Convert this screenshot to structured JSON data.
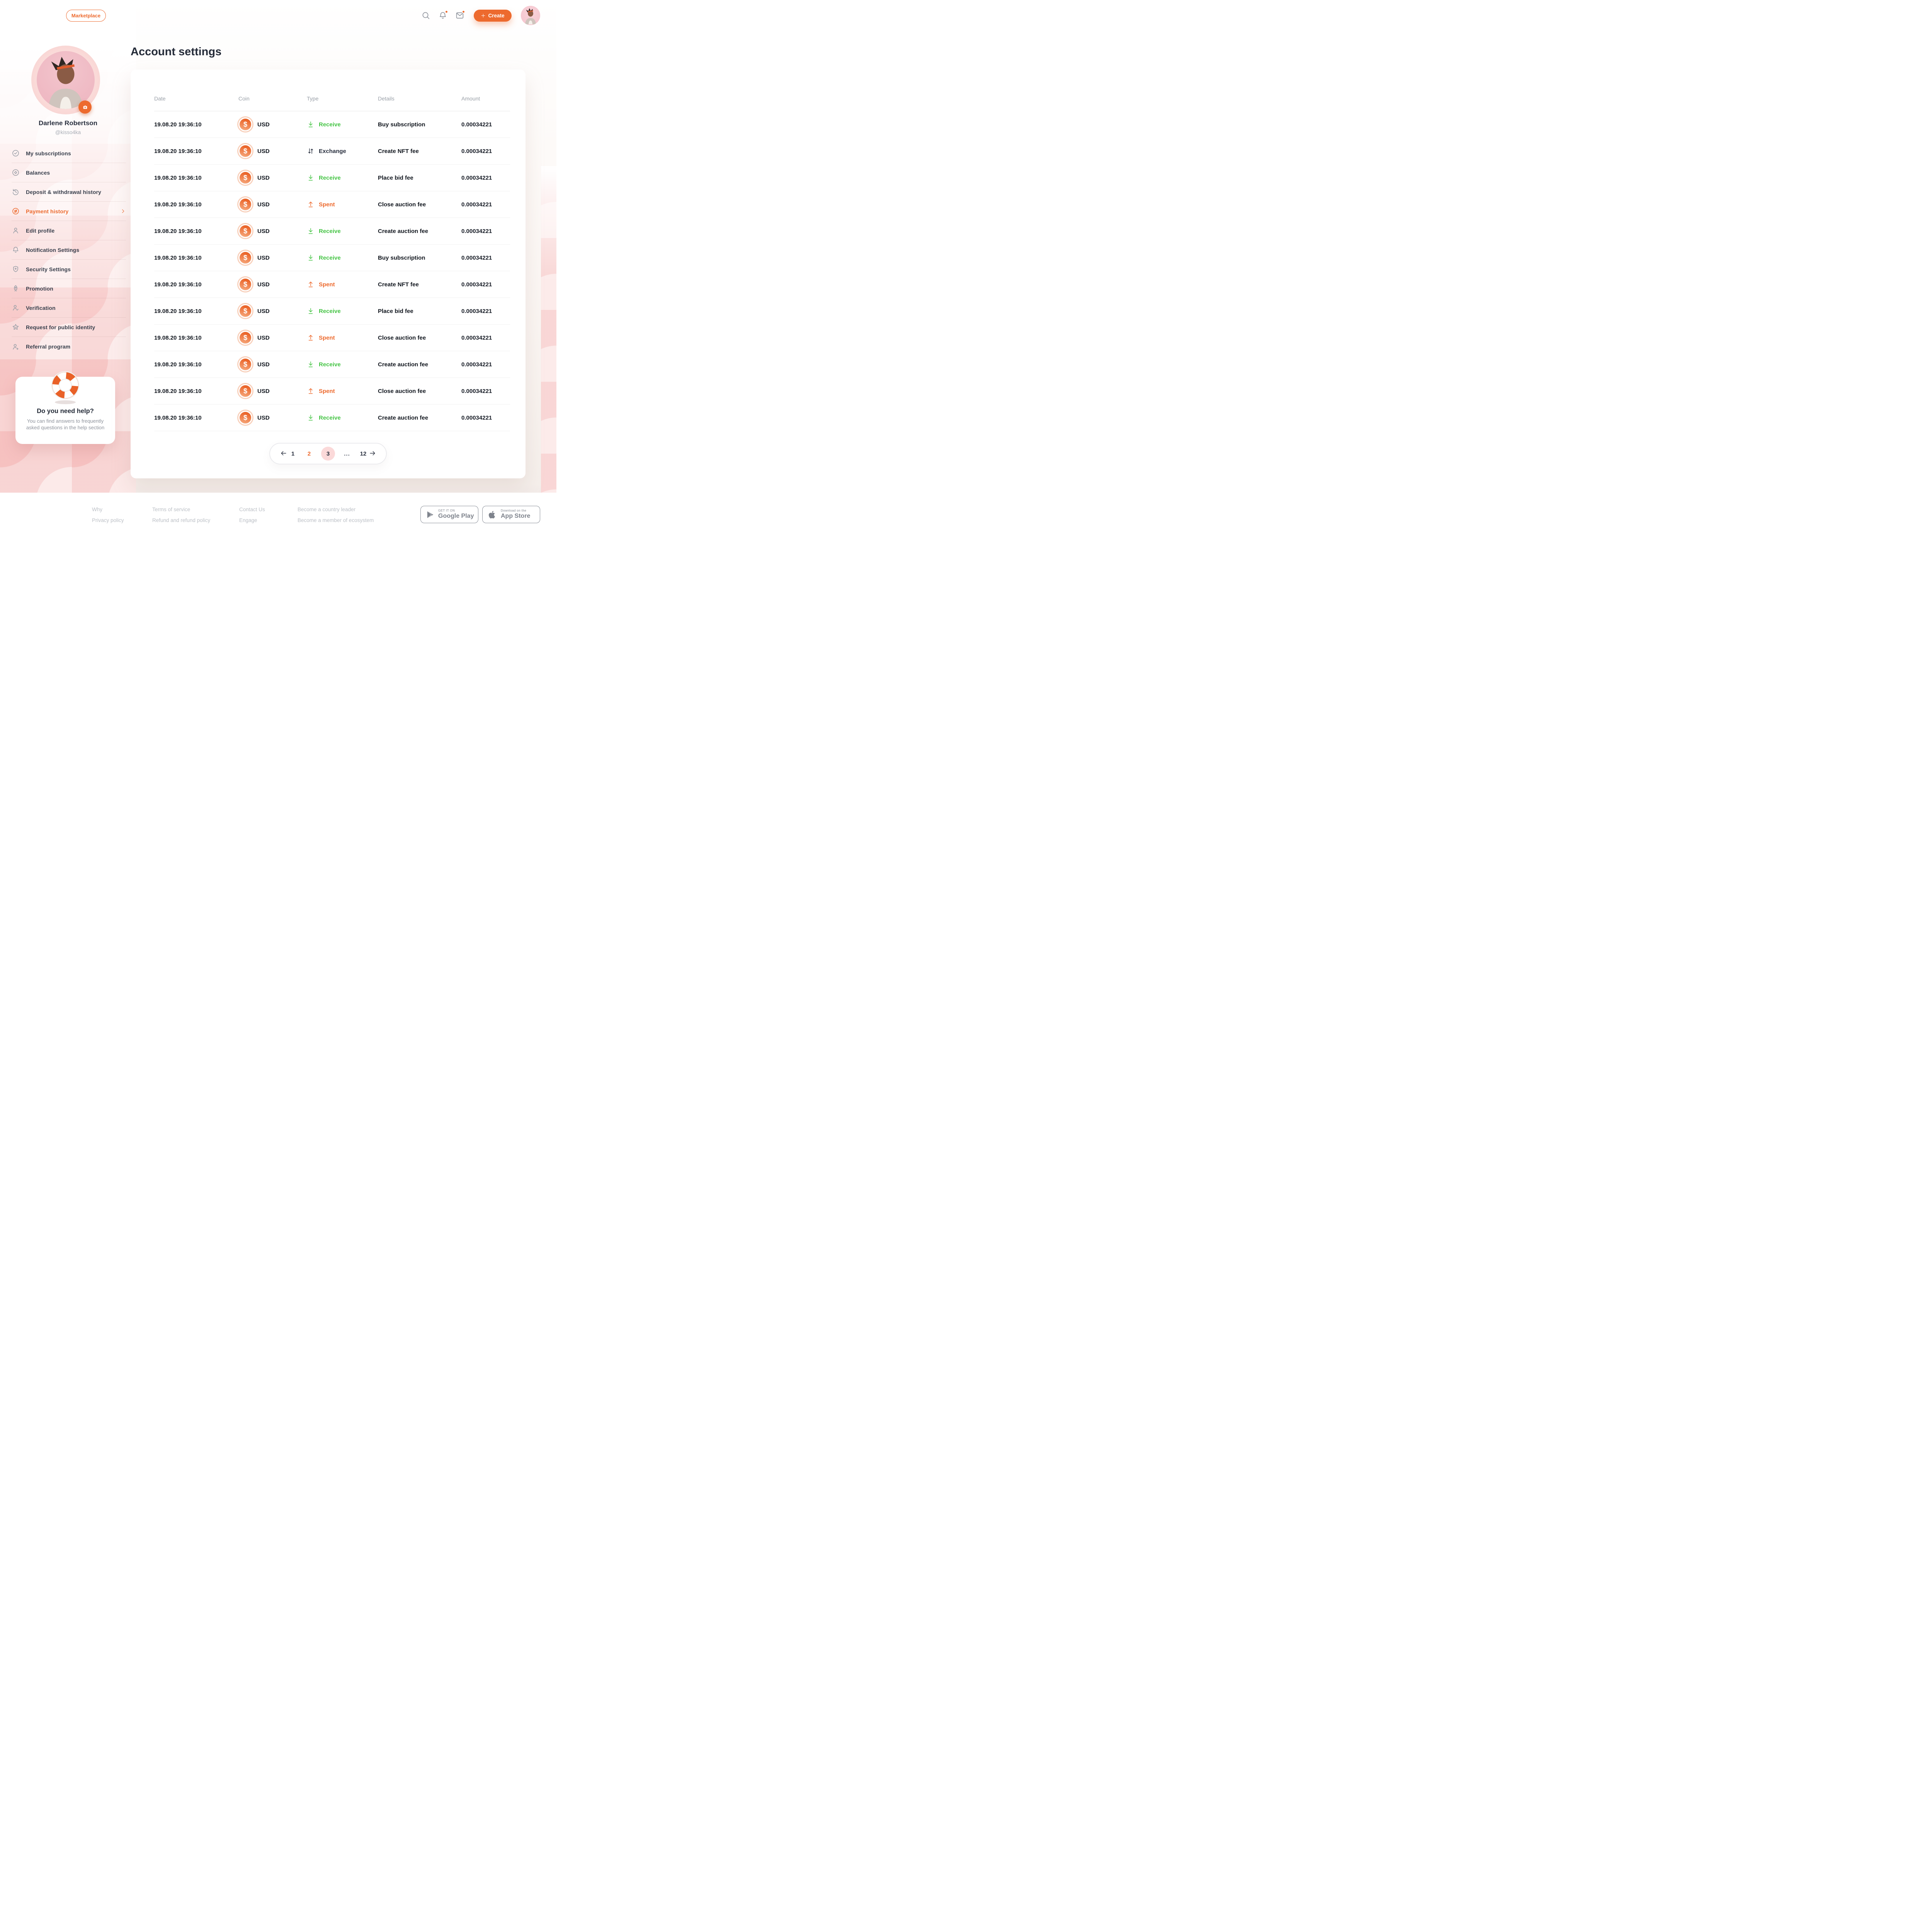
{
  "header": {
    "marketplace_label": "Marketplace",
    "create_label": "Create",
    "search_icon": "search-icon",
    "notifications_icon": "bell-icon",
    "notifications_has_unread": true,
    "messages_icon": "mail-icon",
    "messages_has_unread": true
  },
  "profile": {
    "name": "Darlene Robertson",
    "handle": "@kisso4ka",
    "camera_icon": "camera-icon"
  },
  "sidebar": {
    "items": [
      {
        "icon": "check-circle-icon",
        "label": "My subscriptions"
      },
      {
        "icon": "balances-icon",
        "label": "Balances"
      },
      {
        "icon": "history-icon",
        "label": "Deposit & withdrawal history"
      },
      {
        "icon": "exchange-circle-icon",
        "label": "Payment history",
        "active": true
      },
      {
        "icon": "user-icon",
        "label": "Edit profile"
      },
      {
        "icon": "bell-outline-icon",
        "label": "Notification Settings"
      },
      {
        "icon": "shield-plus-icon",
        "label": "Security Settings"
      },
      {
        "icon": "rocket-icon",
        "label": "Promotion"
      },
      {
        "icon": "user-check-icon",
        "label": "Verification"
      },
      {
        "icon": "star-icon",
        "label": "Request for public identity"
      },
      {
        "icon": "user-plus-icon",
        "label": "Referral program"
      }
    ]
  },
  "help_card": {
    "icon": "lifebuoy-icon",
    "title": "Do you need help?",
    "body": "You can find answers to frequently asked questions in the help section"
  },
  "main": {
    "title": "Account settings"
  },
  "table": {
    "columns": [
      "Date",
      "Coin",
      "Type",
      "Details",
      "Amount"
    ],
    "rows": [
      {
        "date": "19.08.20 19:36:10",
        "coin": "USD",
        "coin_icon": "dollar-coin-icon",
        "type": {
          "kind": "receive",
          "icon": "receive-icon",
          "label": "Receive"
        },
        "details": "Buy subscription",
        "amount": "0.00034221"
      },
      {
        "date": "19.08.20 19:36:10",
        "coin": "USD",
        "coin_icon": "dollar-coin-icon",
        "type": {
          "kind": "exchange",
          "icon": "exchange-icon",
          "label": "Exchange"
        },
        "details": "Create NFT fee",
        "amount": "0.00034221"
      },
      {
        "date": "19.08.20 19:36:10",
        "coin": "USD",
        "coin_icon": "dollar-coin-icon",
        "type": {
          "kind": "receive",
          "icon": "receive-icon",
          "label": "Receive"
        },
        "details": "Place bid fee",
        "amount": "0.00034221"
      },
      {
        "date": "19.08.20 19:36:10",
        "coin": "USD",
        "coin_icon": "dollar-coin-icon",
        "type": {
          "kind": "spent",
          "icon": "spent-icon",
          "label": "Spent"
        },
        "details": "Close auction fee",
        "amount": "0.00034221"
      },
      {
        "date": "19.08.20 19:36:10",
        "coin": "USD",
        "coin_icon": "dollar-coin-icon",
        "type": {
          "kind": "receive",
          "icon": "receive-icon",
          "label": "Receive"
        },
        "details": "Create auction fee",
        "amount": "0.00034221"
      },
      {
        "date": "19.08.20 19:36:10",
        "coin": "USD",
        "coin_icon": "dollar-coin-icon",
        "type": {
          "kind": "receive",
          "icon": "receive-icon",
          "label": "Receive"
        },
        "details": "Buy subscription",
        "amount": "0.00034221"
      },
      {
        "date": "19.08.20 19:36:10",
        "coin": "USD",
        "coin_icon": "dollar-coin-icon",
        "type": {
          "kind": "spent",
          "icon": "spent-icon",
          "label": "Spent"
        },
        "details": "Create NFT fee",
        "amount": "0.00034221"
      },
      {
        "date": "19.08.20 19:36:10",
        "coin": "USD",
        "coin_icon": "dollar-coin-icon",
        "type": {
          "kind": "receive",
          "icon": "receive-icon",
          "label": "Receive"
        },
        "details": "Place bid fee",
        "amount": "0.00034221"
      },
      {
        "date": "19.08.20 19:36:10",
        "coin": "USD",
        "coin_icon": "dollar-coin-icon",
        "type": {
          "kind": "spent",
          "icon": "spent-icon",
          "label": "Spent"
        },
        "details": "Close auction fee",
        "amount": "0.00034221"
      },
      {
        "date": "19.08.20 19:36:10",
        "coin": "USD",
        "coin_icon": "dollar-coin-icon",
        "type": {
          "kind": "receive",
          "icon": "receive-icon",
          "label": "Receive"
        },
        "details": "Create auction fee",
        "amount": "0.00034221"
      },
      {
        "date": "19.08.20 19:36:10",
        "coin": "USD",
        "coin_icon": "dollar-coin-icon",
        "type": {
          "kind": "spent",
          "icon": "spent-icon",
          "label": "Spent"
        },
        "details": "Close auction fee",
        "amount": "0.00034221"
      },
      {
        "date": "19.08.20 19:36:10",
        "coin": "USD",
        "coin_icon": "dollar-coin-icon",
        "type": {
          "kind": "receive",
          "icon": "receive-icon",
          "label": "Receive"
        },
        "details": "Create auction fee",
        "amount": "0.00034221"
      }
    ]
  },
  "pagination": {
    "prev_icon": "arrow-left-icon",
    "next_icon": "arrow-right-icon",
    "items": [
      {
        "label": "1",
        "state": "default"
      },
      {
        "label": "2",
        "state": "active"
      },
      {
        "label": "3",
        "state": "highlighted"
      },
      {
        "label": "...",
        "state": "ellipsis"
      },
      {
        "label": "12",
        "state": "default"
      }
    ]
  },
  "footer": {
    "link_columns": [
      [
        "Why",
        "Privacy policy"
      ],
      [
        "Terms of service",
        "Refund and refund policy"
      ],
      [
        "Contact Us",
        "Engage"
      ],
      [
        "Become a country leader",
        "Become a member of ecosystem"
      ]
    ],
    "badges": [
      {
        "icon": "google-play-icon",
        "tagline": "GET IT ON",
        "store": "Google Play"
      },
      {
        "icon": "apple-icon",
        "tagline": "Download on the",
        "store": "App Store"
      }
    ]
  },
  "colors": {
    "accent_orange": "#ED6A2E",
    "receive_green": "#45C445",
    "dark_text": "#242B38",
    "muted_text": "#9AA0A8",
    "pink_base": "#F8D2D1"
  }
}
